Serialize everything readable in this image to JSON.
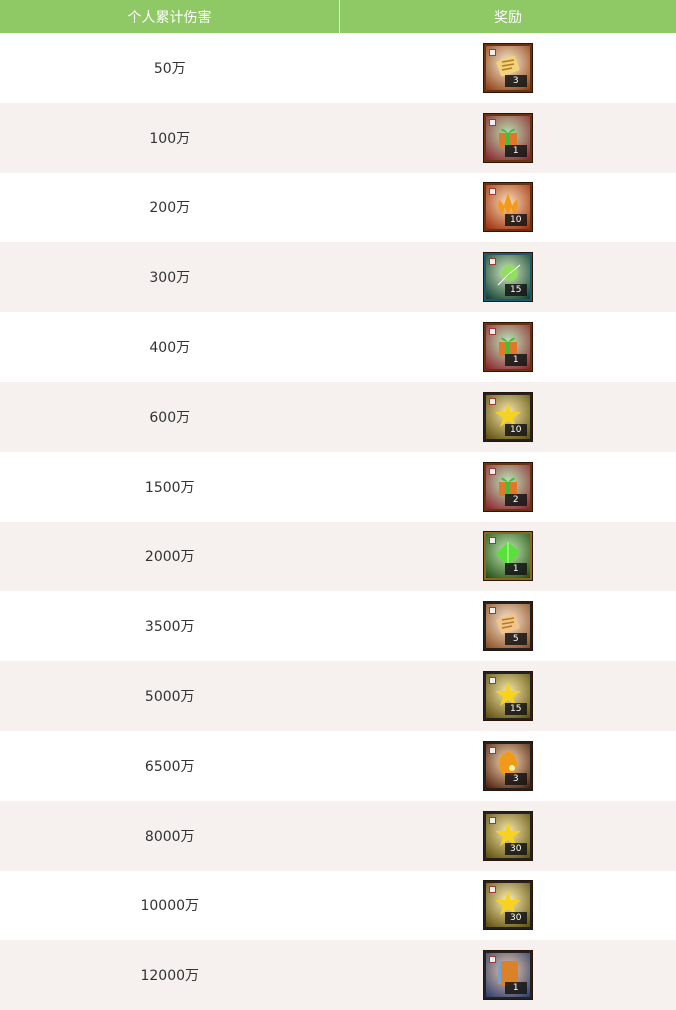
{
  "header": {
    "col_damage": "个人累计伤害",
    "col_reward": "奖励"
  },
  "rows": [
    {
      "damage": "50万",
      "icon": "scroll-icon",
      "count": "3",
      "bg": "#8a3a12",
      "fg": "#f2d37a",
      "border": "#6b3210"
    },
    {
      "damage": "100万",
      "icon": "gift-box-icon",
      "count": "1",
      "bg": "#8a1f2a",
      "fg": "#3fbf3a",
      "border": "#6b3210"
    },
    {
      "damage": "200万",
      "icon": "fire-crystal-icon",
      "count": "10",
      "bg": "#9a2a08",
      "fg": "#f39a1e",
      "border": "#6b3210"
    },
    {
      "damage": "300万",
      "icon": "green-orb-icon",
      "count": "15",
      "bg": "#0c3a30",
      "fg": "#8fe05a",
      "border": "#1b5a6a"
    },
    {
      "damage": "400万",
      "icon": "gift-box-icon",
      "count": "1",
      "bg": "#8a1f2a",
      "fg": "#3fbf3a",
      "border": "#6b3210"
    },
    {
      "damage": "600万",
      "icon": "gold-star-icon",
      "count": "10",
      "bg": "#5a4a08",
      "fg": "#f7d21e",
      "border": "#222"
    },
    {
      "damage": "1500万",
      "icon": "gift-box-icon",
      "count": "2",
      "bg": "#8a1f2a",
      "fg": "#3fbf3a",
      "border": "#6b3210"
    },
    {
      "damage": "2000万",
      "icon": "green-gem-icon",
      "count": "1",
      "bg": "#1e4a10",
      "fg": "#5ae03a",
      "border": "#8a6a1a"
    },
    {
      "damage": "3500万",
      "icon": "scroll-icon",
      "count": "5",
      "bg": "#8a4a1a",
      "fg": "#f2c48a",
      "border": "#222"
    },
    {
      "damage": "5000万",
      "icon": "gold-star-icon",
      "count": "15",
      "bg": "#5a4a08",
      "fg": "#f7d21e",
      "border": "#222"
    },
    {
      "damage": "6500万",
      "icon": "amber-stone-icon",
      "count": "3",
      "bg": "#4a1a08",
      "fg": "#f09a1a",
      "border": "#222"
    },
    {
      "damage": "8000万",
      "icon": "gold-star-icon",
      "count": "30",
      "bg": "#5a4a08",
      "fg": "#f7d21e",
      "border": "#222"
    },
    {
      "damage": "10000万",
      "icon": "gold-star-icon",
      "count": "30",
      "bg": "#5a4a08",
      "fg": "#f7d21e",
      "border": "#222"
    },
    {
      "damage": "12000万",
      "icon": "book-icon",
      "count": "1",
      "bg": "#2a3a6a",
      "fg": "#d9822a",
      "border": "#222"
    }
  ]
}
